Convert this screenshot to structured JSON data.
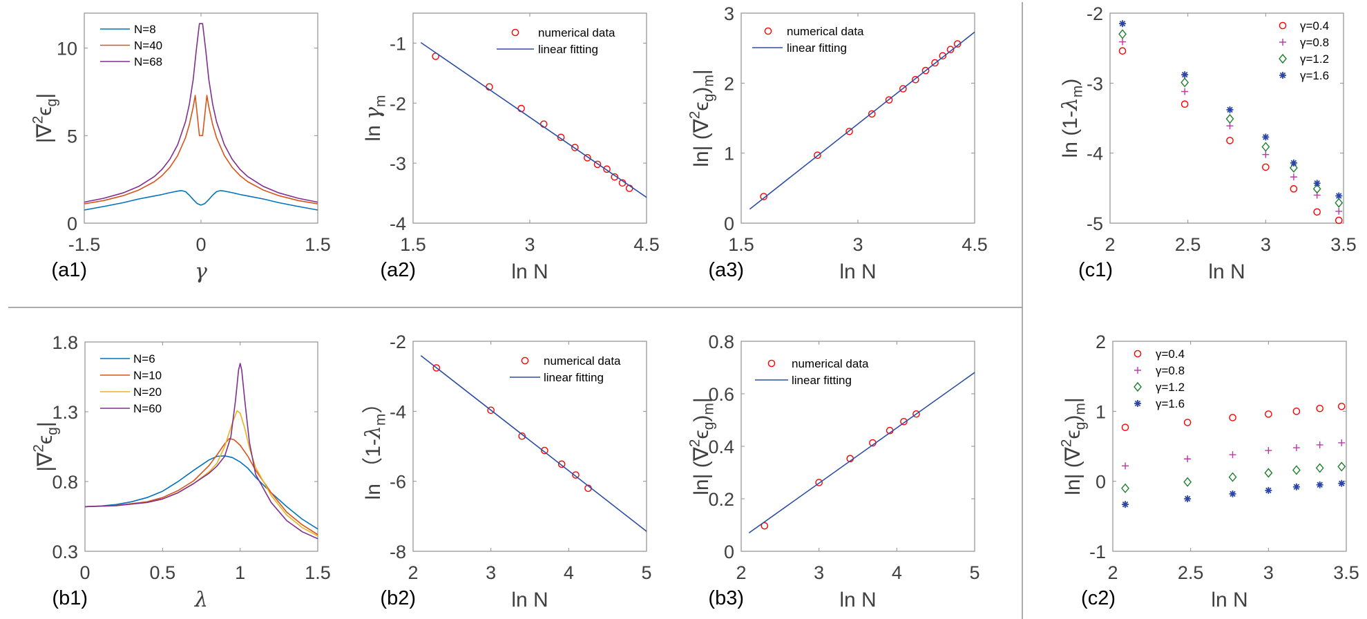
{
  "chart_data": [
    {
      "id": "a1",
      "type": "line",
      "panel_label": "(a1)",
      "xlabel_parts": [
        {
          "t": "γ",
          "greek": true
        }
      ],
      "ylabel_parts": [
        {
          "t": "|∇"
        },
        {
          "t": "2",
          "sup": true
        },
        {
          "t": "ϵ"
        },
        {
          "t": "g",
          "sub": true
        },
        {
          "t": "|"
        }
      ],
      "xlim": [
        -1.5,
        1.5
      ],
      "ylim": [
        0,
        12
      ],
      "xticks": [
        -1.5,
        0,
        1.5
      ],
      "yticks": [
        0,
        5,
        10
      ],
      "legend_location": "top-left",
      "series": [
        {
          "name": "N=8",
          "kind": "line",
          "color": "#0072BD",
          "x": [
            -1.5,
            -1.25,
            -1,
            -0.8,
            -0.6,
            -0.5,
            -0.4,
            -0.3,
            -0.25,
            -0.2,
            -0.15,
            -0.1,
            -0.05,
            0,
            0.05,
            0.1,
            0.15,
            0.2,
            0.25,
            0.3,
            0.4,
            0.5,
            0.6,
            0.8,
            1,
            1.25,
            1.5
          ],
          "y": [
            0.75,
            0.95,
            1.17,
            1.38,
            1.55,
            1.64,
            1.74,
            1.83,
            1.86,
            1.8,
            1.6,
            1.35,
            1.12,
            1.03,
            1.12,
            1.35,
            1.6,
            1.8,
            1.86,
            1.83,
            1.74,
            1.64,
            1.55,
            1.38,
            1.17,
            0.95,
            0.75
          ]
        },
        {
          "name": "N=40",
          "kind": "line",
          "color": "#D95319",
          "x": [
            -1.5,
            -1.25,
            -1,
            -0.8,
            -0.6,
            -0.5,
            -0.4,
            -0.3,
            -0.2,
            -0.15,
            -0.1,
            -0.075,
            -0.02,
            0.02,
            0.075,
            0.1,
            0.15,
            0.2,
            0.3,
            0.4,
            0.5,
            0.6,
            0.8,
            1,
            1.25,
            1.5
          ],
          "y": [
            1.1,
            1.29,
            1.57,
            1.89,
            2.37,
            2.72,
            3.19,
            3.86,
            4.88,
            5.63,
            6.64,
            7.3,
            5.0,
            5.0,
            7.3,
            6.64,
            5.63,
            4.88,
            3.86,
            3.19,
            2.72,
            2.37,
            1.89,
            1.57,
            1.29,
            1.1
          ]
        },
        {
          "name": "N=68",
          "kind": "line",
          "color": "#7E2F8E",
          "x": [
            -1.5,
            -1.25,
            -1,
            -0.8,
            -0.6,
            -0.5,
            -0.4,
            -0.3,
            -0.2,
            -0.15,
            -0.1,
            -0.06,
            -0.02,
            0.02,
            0.06,
            0.1,
            0.15,
            0.2,
            0.3,
            0.4,
            0.5,
            0.6,
            0.8,
            1,
            1.25,
            1.5
          ],
          "y": [
            1.2,
            1.42,
            1.73,
            2.1,
            2.66,
            3.08,
            3.65,
            4.48,
            5.79,
            6.79,
            8.21,
            9.9,
            11.4,
            11.4,
            9.9,
            8.21,
            6.79,
            5.79,
            4.48,
            3.65,
            3.08,
            2.66,
            2.1,
            1.73,
            1.42,
            1.2
          ]
        }
      ]
    },
    {
      "id": "a2",
      "type": "scatter",
      "panel_label": "(a2)",
      "xlabel_parts": [
        {
          "t": "ln N"
        }
      ],
      "ylabel_parts": [
        {
          "t": "ln "
        },
        {
          "t": "γ",
          "greek": true
        },
        {
          "t": "m",
          "sub": true
        }
      ],
      "xlim": [
        1.5,
        4.5
      ],
      "ylim": [
        -4,
        -0.5
      ],
      "xticks": [
        1.5,
        3,
        4.5
      ],
      "yticks": [
        -4,
        -3,
        -2,
        -1
      ],
      "legend_location": "top-right",
      "series": [
        {
          "name": "numerical data",
          "kind": "markers",
          "marker": "circle",
          "color": "#FF0000",
          "x": [
            1.79,
            2.48,
            2.89,
            3.18,
            3.4,
            3.58,
            3.74,
            3.87,
            3.99,
            4.09,
            4.19,
            4.28
          ],
          "y": [
            -1.22,
            -1.73,
            -2.09,
            -2.35,
            -2.57,
            -2.74,
            -2.91,
            -3.02,
            -3.1,
            -3.23,
            -3.33,
            -3.42
          ]
        },
        {
          "name": "linear fitting",
          "kind": "fit",
          "color": "#2B4DA3",
          "x": [
            1.6,
            4.5
          ],
          "y": [
            -0.99,
            -3.57
          ]
        }
      ]
    },
    {
      "id": "a3",
      "type": "scatter",
      "panel_label": "(a3)",
      "xlabel_parts": [
        {
          "t": "ln N"
        }
      ],
      "ylabel_parts": [
        {
          "t": "ln| (∇"
        },
        {
          "t": "2",
          "sup": true
        },
        {
          "t": "ϵ"
        },
        {
          "t": "g",
          "sub": true
        },
        {
          "t": ")"
        },
        {
          "t": "m",
          "sub": true
        },
        {
          "t": "|"
        }
      ],
      "xlim": [
        1.5,
        4.5
      ],
      "ylim": [
        0,
        3
      ],
      "xticks": [
        1.5,
        3,
        4.5
      ],
      "yticks": [
        0,
        1,
        2,
        3
      ],
      "legend_location": "top-left",
      "series": [
        {
          "name": "numerical data",
          "kind": "markers",
          "marker": "circle",
          "color": "#FF0000",
          "x": [
            1.79,
            2.48,
            2.89,
            3.18,
            3.4,
            3.58,
            3.74,
            3.87,
            3.99,
            4.09,
            4.19,
            4.28
          ],
          "y": [
            0.38,
            0.97,
            1.31,
            1.56,
            1.76,
            1.92,
            2.05,
            2.18,
            2.29,
            2.39,
            2.48,
            2.56
          ]
        },
        {
          "name": "linear fitting",
          "kind": "fit",
          "color": "#2B4DA3",
          "x": [
            1.61,
            4.5
          ],
          "y": [
            0.2,
            2.73
          ]
        }
      ]
    },
    {
      "id": "c1",
      "type": "scatter",
      "panel_label": "(c1)",
      "xlabel_parts": [
        {
          "t": "ln N"
        }
      ],
      "ylabel_parts": [
        {
          "t": "ln (1-"
        },
        {
          "t": "λ",
          "greek": true
        },
        {
          "t": "m",
          "sub": true
        },
        {
          "t": ")"
        }
      ],
      "xlim": [
        2,
        3.5
      ],
      "ylim": [
        -5,
        -2
      ],
      "xticks": [
        2,
        2.5,
        3,
        3.5
      ],
      "yticks": [
        -5,
        -4,
        -3,
        -2
      ],
      "legend_location": "top-right",
      "series": [
        {
          "name": "γ=0.4",
          "kind": "markers",
          "marker": "circle",
          "color": "#FF0000",
          "x": [
            2.08,
            2.48,
            2.77,
            3.0,
            3.18,
            3.33,
            3.47
          ],
          "y": [
            -2.54,
            -3.3,
            -3.82,
            -4.2,
            -4.51,
            -4.84,
            -4.96
          ]
        },
        {
          "name": "γ=0.8",
          "kind": "markers",
          "marker": "plus",
          "color": "#B83AA6",
          "x": [
            2.08,
            2.48,
            2.77,
            3.0,
            3.18,
            3.33,
            3.47
          ],
          "y": [
            -2.41,
            -3.12,
            -3.61,
            -4.02,
            -4.34,
            -4.6,
            -4.83
          ]
        },
        {
          "name": "γ=1.2",
          "kind": "markers",
          "marker": "diamond",
          "color": "#1E7F2E",
          "x": [
            2.08,
            2.48,
            2.77,
            3.0,
            3.18,
            3.33,
            3.47
          ],
          "y": [
            -2.3,
            -2.99,
            -3.51,
            -3.91,
            -4.21,
            -4.51,
            -4.71
          ]
        },
        {
          "name": "γ=1.6",
          "kind": "markers",
          "marker": "asterisk",
          "color": "#2A44A8",
          "x": [
            2.08,
            2.48,
            2.77,
            3.0,
            3.18,
            3.33,
            3.47
          ],
          "y": [
            -2.15,
            -2.88,
            -3.38,
            -3.77,
            -4.14,
            -4.43,
            -4.61
          ]
        }
      ]
    },
    {
      "id": "b1",
      "type": "line",
      "panel_label": "(b1)",
      "xlabel_parts": [
        {
          "t": "λ",
          "greek": true
        }
      ],
      "ylabel_parts": [
        {
          "t": "|∇"
        },
        {
          "t": "2",
          "sup": true
        },
        {
          "t": "ϵ"
        },
        {
          "t": "g",
          "sub": true
        },
        {
          "t": "|"
        }
      ],
      "xlim": [
        0,
        1.5
      ],
      "ylim": [
        0.3,
        1.8
      ],
      "xticks": [
        0,
        0.5,
        1,
        1.5
      ],
      "yticks": [
        0.3,
        0.8,
        1.3,
        1.8
      ],
      "legend_location": "top-left",
      "series": [
        {
          "name": "N=6",
          "kind": "line",
          "color": "#0072BD",
          "x": [
            0,
            0.1,
            0.2,
            0.3,
            0.4,
            0.5,
            0.6,
            0.7,
            0.8,
            0.85,
            0.9,
            0.95,
            1.0,
            1.05,
            1.1,
            1.2,
            1.3,
            1.4,
            1.5
          ],
          "y": [
            0.62,
            0.625,
            0.635,
            0.655,
            0.685,
            0.73,
            0.8,
            0.88,
            0.955,
            0.98,
            0.984,
            0.972,
            0.94,
            0.895,
            0.83,
            0.72,
            0.62,
            0.53,
            0.46
          ]
        },
        {
          "name": "N=10",
          "kind": "line",
          "color": "#D95319",
          "x": [
            0,
            0.2,
            0.4,
            0.5,
            0.6,
            0.7,
            0.8,
            0.85,
            0.9,
            0.93,
            0.96,
            1.0,
            1.05,
            1.1,
            1.2,
            1.3,
            1.4,
            1.5
          ],
          "y": [
            0.62,
            0.628,
            0.655,
            0.685,
            0.735,
            0.805,
            0.915,
            0.99,
            1.07,
            1.108,
            1.1,
            1.06,
            0.98,
            0.88,
            0.72,
            0.58,
            0.49,
            0.42
          ]
        },
        {
          "name": "N=20",
          "kind": "line",
          "color": "#EDB120",
          "x": [
            0,
            0.2,
            0.4,
            0.5,
            0.6,
            0.7,
            0.8,
            0.85,
            0.9,
            0.95,
            0.98,
            1.0,
            1.03,
            1.06,
            1.1,
            1.2,
            1.3,
            1.4,
            1.5
          ],
          "y": [
            0.62,
            0.627,
            0.65,
            0.675,
            0.72,
            0.785,
            0.87,
            0.93,
            1.05,
            1.22,
            1.307,
            1.29,
            1.18,
            1.04,
            0.9,
            0.7,
            0.56,
            0.47,
            0.41
          ]
        },
        {
          "name": "N=60",
          "kind": "line",
          "color": "#7E2F8E",
          "x": [
            0,
            0.2,
            0.4,
            0.5,
            0.6,
            0.7,
            0.8,
            0.85,
            0.9,
            0.94,
            0.97,
            0.99,
            1.0,
            1.01,
            1.03,
            1.06,
            1.1,
            1.2,
            1.3,
            1.4,
            1.5
          ],
          "y": [
            0.62,
            0.627,
            0.65,
            0.675,
            0.72,
            0.785,
            0.86,
            0.91,
            0.98,
            1.12,
            1.38,
            1.6,
            1.646,
            1.6,
            1.38,
            1.08,
            0.85,
            0.65,
            0.52,
            0.44,
            0.39
          ]
        }
      ]
    },
    {
      "id": "b2",
      "type": "scatter",
      "panel_label": "(b2)",
      "xlabel_parts": [
        {
          "t": "ln N"
        }
      ],
      "ylabel_parts": [
        {
          "t": "ln （1-"
        },
        {
          "t": "λ",
          "greek": true
        },
        {
          "t": "m",
          "sub": true
        },
        {
          "t": "）"
        }
      ],
      "xlim": [
        2,
        5
      ],
      "ylim": [
        -8,
        -2
      ],
      "xticks": [
        2,
        3,
        4,
        5
      ],
      "yticks": [
        -8,
        -6,
        -4,
        -2
      ],
      "legend_location": "top-right",
      "series": [
        {
          "name": "numerical data",
          "kind": "markers",
          "marker": "circle",
          "color": "#FF0000",
          "x": [
            2.3,
            3.0,
            3.4,
            3.69,
            3.91,
            4.09,
            4.25
          ],
          "y": [
            -2.76,
            -3.97,
            -4.71,
            -5.12,
            -5.51,
            -5.82,
            -6.2
          ]
        },
        {
          "name": "linear fitting",
          "kind": "fit",
          "color": "#2B4DA3",
          "x": [
            2.1,
            5
          ],
          "y": [
            -2.41,
            -7.43
          ]
        }
      ]
    },
    {
      "id": "b3",
      "type": "scatter",
      "panel_label": "(b3)",
      "xlabel_parts": [
        {
          "t": "ln N"
        }
      ],
      "ylabel_parts": [
        {
          "t": "ln| (∇"
        },
        {
          "t": "2",
          "sup": true
        },
        {
          "t": "ϵ"
        },
        {
          "t": "g",
          "sub": true
        },
        {
          "t": ")"
        },
        {
          "t": "m",
          "sub": true
        },
        {
          "t": "|"
        }
      ],
      "xlim": [
        2,
        5
      ],
      "ylim": [
        0,
        0.8
      ],
      "xticks": [
        2,
        3,
        4,
        5
      ],
      "yticks": [
        0,
        0.2,
        0.4,
        0.6,
        0.8
      ],
      "legend_location": "top-left",
      "series": [
        {
          "name": "numerical data",
          "kind": "markers",
          "marker": "circle",
          "color": "#FF0000",
          "x": [
            2.3,
            3.0,
            3.4,
            3.69,
            3.91,
            4.09,
            4.25
          ],
          "y": [
            0.097,
            0.262,
            0.353,
            0.413,
            0.46,
            0.494,
            0.523
          ]
        },
        {
          "name": "linear fitting",
          "kind": "fit",
          "color": "#2B4DA3",
          "x": [
            2.1,
            5
          ],
          "y": [
            0.07,
            0.681
          ]
        }
      ]
    },
    {
      "id": "c2",
      "type": "scatter",
      "panel_label": "(c2)",
      "xlabel_parts": [
        {
          "t": "ln N"
        }
      ],
      "ylabel_parts": [
        {
          "t": "ln| (∇"
        },
        {
          "t": "2",
          "sup": true
        },
        {
          "t": "ϵ"
        },
        {
          "t": "g",
          "sub": true
        },
        {
          "t": ")"
        },
        {
          "t": "m",
          "sub": true
        },
        {
          "t": "|"
        }
      ],
      "xlim": [
        2,
        3.5
      ],
      "ylim": [
        -1,
        2
      ],
      "xticks": [
        2,
        2.5,
        3,
        3.5
      ],
      "yticks": [
        -1,
        0,
        1,
        2
      ],
      "legend_location": "top-left",
      "series": [
        {
          "name": "γ=0.4",
          "kind": "markers",
          "marker": "circle",
          "color": "#FF0000",
          "x": [
            2.08,
            2.48,
            2.77,
            3.0,
            3.18,
            3.33,
            3.47
          ],
          "y": [
            0.77,
            0.84,
            0.91,
            0.96,
            1.0,
            1.04,
            1.07
          ]
        },
        {
          "name": "γ=0.8",
          "kind": "markers",
          "marker": "plus",
          "color": "#B83AA6",
          "x": [
            2.08,
            2.48,
            2.77,
            3.0,
            3.18,
            3.33,
            3.47
          ],
          "y": [
            0.22,
            0.32,
            0.38,
            0.44,
            0.48,
            0.52,
            0.55
          ]
        },
        {
          "name": "γ=1.2",
          "kind": "markers",
          "marker": "diamond",
          "color": "#1E7F2E",
          "x": [
            2.08,
            2.48,
            2.77,
            3.0,
            3.18,
            3.33,
            3.47
          ],
          "y": [
            -0.1,
            -0.01,
            0.06,
            0.12,
            0.16,
            0.19,
            0.21
          ]
        },
        {
          "name": "γ=1.6",
          "kind": "markers",
          "marker": "asterisk",
          "color": "#2A44A8",
          "x": [
            2.08,
            2.48,
            2.77,
            3.0,
            3.18,
            3.33,
            3.47
          ],
          "y": [
            -0.33,
            -0.25,
            -0.18,
            -0.13,
            -0.08,
            -0.05,
            -0.03
          ]
        }
      ]
    }
  ]
}
